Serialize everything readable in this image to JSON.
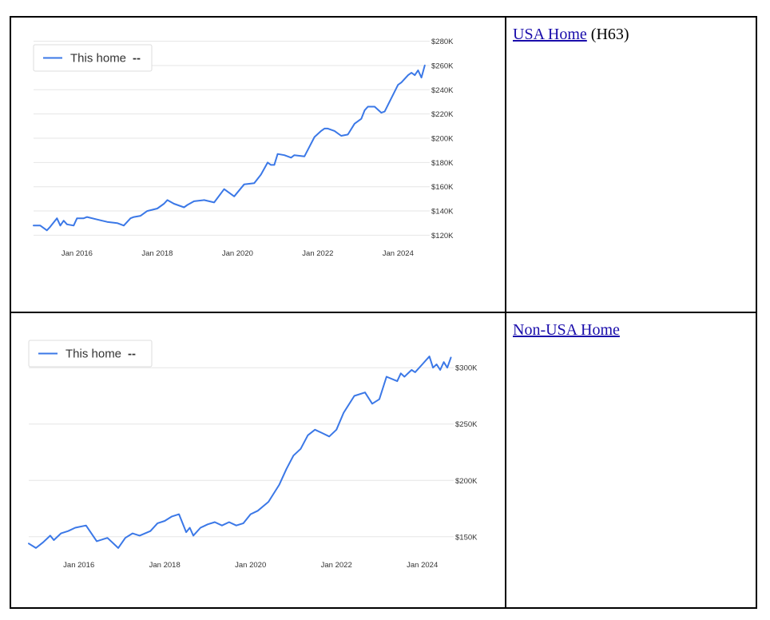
{
  "rows": [
    {
      "link_text": "USA Home",
      "suffix": "(H63)"
    },
    {
      "link_text": "Non-USA Home",
      "suffix": ""
    }
  ],
  "chart_data": [
    {
      "type": "line",
      "title": "",
      "xlabel": "",
      "ylabel": "",
      "legend": {
        "position": "top-left",
        "label": "This home",
        "extra": "--"
      },
      "x_ticks": [
        "Jan 2016",
        "Jan 2018",
        "Jan 2020",
        "Jan 2022",
        "Jan 2024"
      ],
      "y_ticks": [
        "$120K",
        "$140K",
        "$160K",
        "$180K",
        "$200K",
        "$220K",
        "$240K",
        "$260K",
        "$280K"
      ],
      "ylim": [
        115000,
        285000
      ],
      "xlim": [
        "2014-12",
        "2024-10"
      ],
      "grid": true,
      "color": "#3b78e7",
      "series": [
        {
          "name": "This home",
          "x": [
            "2014-12",
            "2015-02",
            "2015-04",
            "2015-05",
            "2015-07",
            "2015-08",
            "2015-09",
            "2015-10",
            "2015-12",
            "2016-01",
            "2016-03",
            "2016-04",
            "2016-07",
            "2016-10",
            "2017-01",
            "2017-03",
            "2017-05",
            "2017-06",
            "2017-08",
            "2017-10",
            "2018-01",
            "2018-03",
            "2018-04",
            "2018-06",
            "2018-09",
            "2018-10",
            "2018-12",
            "2019-03",
            "2019-06",
            "2019-09",
            "2019-12",
            "2020-03",
            "2020-06",
            "2020-08",
            "2020-10",
            "2020-11",
            "2020-12",
            "2021-01",
            "2021-03",
            "2021-05",
            "2021-06",
            "2021-09",
            "2021-12",
            "2022-02",
            "2022-03",
            "2022-04",
            "2022-06",
            "2022-08",
            "2022-10",
            "2022-12",
            "2023-02",
            "2023-03",
            "2023-04",
            "2023-06",
            "2023-08",
            "2023-09",
            "2023-11",
            "2024-01",
            "2024-02",
            "2024-04",
            "2024-05",
            "2024-06",
            "2024-07",
            "2024-08",
            "2024-09"
          ],
          "values": [
            128000,
            128000,
            124000,
            127000,
            134000,
            128000,
            132000,
            129000,
            128000,
            134000,
            134000,
            135000,
            133000,
            131000,
            130000,
            128000,
            134000,
            135000,
            136000,
            140000,
            142000,
            146000,
            149000,
            146000,
            143000,
            145000,
            148000,
            149000,
            147000,
            158000,
            152000,
            162000,
            163000,
            170000,
            180000,
            178000,
            178000,
            187000,
            186000,
            184000,
            186000,
            185000,
            201000,
            206000,
            208000,
            208000,
            206000,
            202000,
            203000,
            212000,
            216000,
            223000,
            226000,
            226000,
            221000,
            222000,
            233000,
            244000,
            246000,
            252000,
            254000,
            252000,
            256000,
            250000,
            260000
          ]
        }
      ]
    },
    {
      "type": "line",
      "title": "",
      "xlabel": "",
      "ylabel": "",
      "legend": {
        "position": "top-left",
        "label": "This home",
        "extra": "--"
      },
      "x_ticks": [
        "Jan 2016",
        "Jan 2018",
        "Jan 2020",
        "Jan 2022",
        "Jan 2024"
      ],
      "y_ticks": [
        "$150K",
        "$200K",
        "$250K",
        "$300K"
      ],
      "ylim": [
        130000,
        320000
      ],
      "xlim": [
        "2014-11",
        "2024-10"
      ],
      "grid": true,
      "color": "#3b78e7",
      "series": [
        {
          "name": "This home",
          "x": [
            "2014-11",
            "2015-01",
            "2015-03",
            "2015-05",
            "2015-06",
            "2015-08",
            "2015-10",
            "2015-12",
            "2016-03",
            "2016-06",
            "2016-08",
            "2016-09",
            "2016-12",
            "2017-02",
            "2017-04",
            "2017-06",
            "2017-09",
            "2017-11",
            "2018-01",
            "2018-03",
            "2018-05",
            "2018-07",
            "2018-08",
            "2018-09",
            "2018-11",
            "2019-01",
            "2019-03",
            "2019-05",
            "2019-07",
            "2019-09",
            "2019-11",
            "2020-01",
            "2020-03",
            "2020-06",
            "2020-09",
            "2020-11",
            "2021-01",
            "2021-03",
            "2021-05",
            "2021-07",
            "2021-09",
            "2021-11",
            "2022-01",
            "2022-03",
            "2022-06",
            "2022-09",
            "2022-11",
            "2023-01",
            "2023-03",
            "2023-06",
            "2023-07",
            "2023-08",
            "2023-10",
            "2023-11",
            "2024-01",
            "2024-03",
            "2024-04",
            "2024-05",
            "2024-06",
            "2024-07",
            "2024-08",
            "2024-09"
          ],
          "values": [
            144000,
            140000,
            145000,
            151000,
            147000,
            153000,
            155000,
            158000,
            160000,
            146000,
            148000,
            149000,
            140000,
            149000,
            153000,
            151000,
            155000,
            162000,
            164000,
            168000,
            170000,
            154000,
            158000,
            151000,
            158000,
            161000,
            163000,
            160000,
            163000,
            160000,
            162000,
            170000,
            173000,
            181000,
            196000,
            210000,
            222000,
            228000,
            240000,
            245000,
            242000,
            239000,
            245000,
            260000,
            275000,
            278000,
            268000,
            272000,
            292000,
            288000,
            295000,
            292000,
            298000,
            296000,
            303000,
            310000,
            300000,
            303000,
            298000,
            305000,
            300000,
            309000
          ]
        }
      ]
    }
  ]
}
